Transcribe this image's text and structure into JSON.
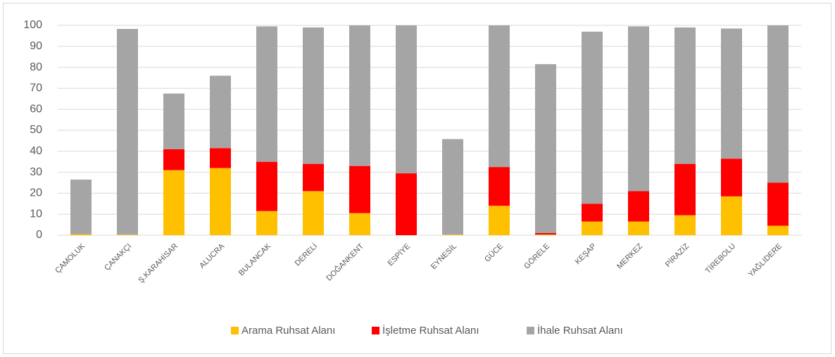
{
  "chart_data": {
    "type": "stacked_bar",
    "categories": [
      "ÇAMOLUK",
      "ÇANAKÇI",
      "Ş.KARAHİSAR",
      "ALUCRA",
      "BULANCAK",
      "DERELİ",
      "DOĞANKENT",
      "ESPİYE",
      "EYNESİL",
      "GÜCE",
      "GÖRELE",
      "KEŞAP",
      "MERKEZ",
      "PİRAZİZ",
      "TİREBOLU",
      "YAĞLIDERE"
    ],
    "series": [
      {
        "name": "Arama Ruhsat Alanı",
        "color": "#ffc000",
        "values": [
          0.5,
          0.3,
          31,
          32,
          11.5,
          21,
          10.5,
          0,
          0.3,
          14,
          0.3,
          6.5,
          6.5,
          9.5,
          18.5,
          4.5
        ]
      },
      {
        "name": "İşletme Ruhsat Alanı",
        "color": "#ff0000",
        "values": [
          0,
          0,
          10,
          9.5,
          23.5,
          13,
          22.5,
          29.5,
          0,
          18.5,
          0.7,
          8.5,
          14.5,
          24.5,
          18,
          20.5
        ]
      },
      {
        "name": "İhale Ruhsat Alanı",
        "color": "#a5a5a5",
        "values": [
          26,
          98,
          26.5,
          34.5,
          64.5,
          65,
          67,
          70.5,
          45.5,
          67.5,
          80.5,
          82,
          78.5,
          65,
          62,
          75
        ]
      }
    ],
    "ylim": [
      0,
      100
    ],
    "yticks": [
      0,
      10,
      20,
      30,
      40,
      50,
      60,
      70,
      80,
      90,
      100
    ],
    "grid": true,
    "legend": "bottom"
  }
}
